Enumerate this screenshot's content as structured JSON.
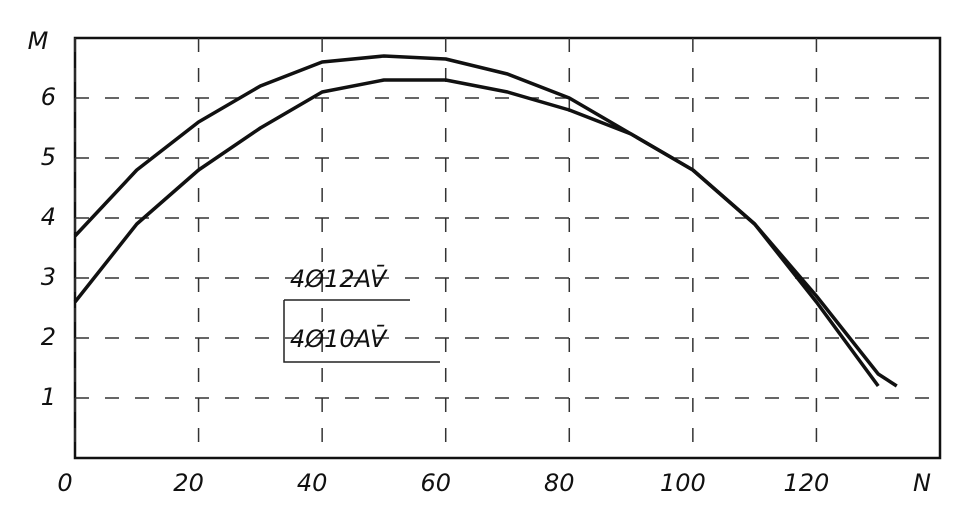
{
  "chart_data": {
    "type": "line",
    "x_label": "N",
    "y_label": "M",
    "xlim": [
      0,
      140
    ],
    "ylim": [
      0,
      7
    ],
    "xticks": [
      0,
      20,
      40,
      60,
      80,
      100,
      120
    ],
    "yticks": [
      1,
      2,
      3,
      4,
      5,
      6
    ],
    "grid": true,
    "series": [
      {
        "name": "4Ø12AV̄",
        "color": "#111111",
        "x": [
          0,
          10,
          20,
          30,
          40,
          50,
          60,
          70,
          80,
          90,
          100,
          110,
          120,
          130,
          133
        ],
        "values": [
          3.7,
          4.8,
          5.6,
          6.2,
          6.6,
          6.7,
          6.65,
          6.4,
          6.0,
          5.4,
          4.8,
          3.9,
          2.7,
          1.4,
          1.2
        ]
      },
      {
        "name": "4Ø10AV̄",
        "color": "#111111",
        "x": [
          0,
          10,
          20,
          30,
          40,
          50,
          60,
          70,
          80,
          90,
          100,
          110,
          120,
          130
        ],
        "values": [
          2.6,
          3.9,
          4.8,
          5.5,
          6.1,
          6.3,
          6.3,
          6.1,
          5.8,
          5.4,
          4.8,
          3.9,
          2.6,
          1.2
        ]
      }
    ]
  }
}
